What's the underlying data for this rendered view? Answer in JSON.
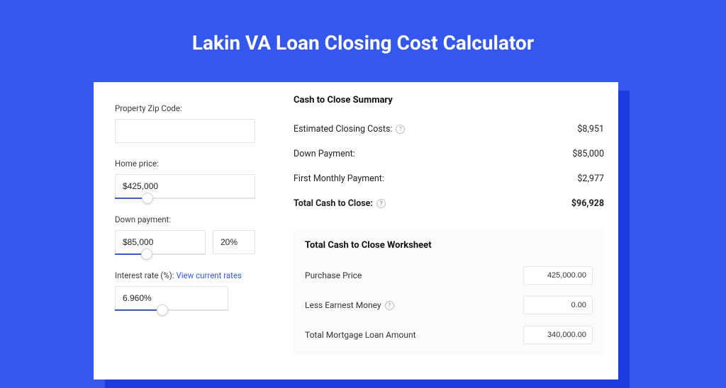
{
  "colors": {
    "page_bg": "#3357ef",
    "shadow": "#1b3bdd",
    "card_bg": "#ffffff",
    "worksheet_bg": "#fafbfc",
    "input_border": "#e2e2e2",
    "slider_track": "#e0e0e0",
    "slider_fill": "#3357ef",
    "text_primary": "#111111",
    "text_body": "#3a3a3a",
    "link": "#3357ef",
    "help_border": "#bdbdbd"
  },
  "typography": {
    "title_fontsize": 28,
    "title_weight": 700,
    "label_fontsize": 11.5,
    "section_fontsize": 13,
    "row_fontsize": 12.5,
    "input_fontsize": 12
  },
  "page": {
    "title": "Lakin VA Loan Closing Cost Calculator"
  },
  "inputs": {
    "zip": {
      "label": "Property Zip Code:",
      "value": ""
    },
    "home_price": {
      "label": "Home price:",
      "value": "$425,000",
      "slider_percent": 23
    },
    "down_payment": {
      "label": "Down payment:",
      "value": "$85,000",
      "percent_value": "20%",
      "slider_percent": 35
    },
    "interest_rate": {
      "label": "Interest rate (%):",
      "link_text": "View current rates",
      "value": "6.960%",
      "slider_percent": 42
    }
  },
  "summary": {
    "title": "Cash to Close Summary",
    "rows": [
      {
        "label": "Estimated Closing Costs:",
        "has_help": true,
        "value": "$8,951",
        "bold": false
      },
      {
        "label": "Down Payment:",
        "has_help": false,
        "value": "$85,000",
        "bold": false
      },
      {
        "label": "First Monthly Payment:",
        "has_help": false,
        "value": "$2,977",
        "bold": false
      },
      {
        "label": "Total Cash to Close:",
        "has_help": true,
        "value": "$96,928",
        "bold": true
      }
    ]
  },
  "worksheet": {
    "title": "Total Cash to Close Worksheet",
    "rows": [
      {
        "label": "Purchase Price",
        "has_help": false,
        "value": "425,000.00"
      },
      {
        "label": "Less Earnest Money",
        "has_help": true,
        "value": "0.00"
      },
      {
        "label": "Total Mortgage Loan Amount",
        "has_help": false,
        "value": "340,000.00"
      }
    ]
  }
}
